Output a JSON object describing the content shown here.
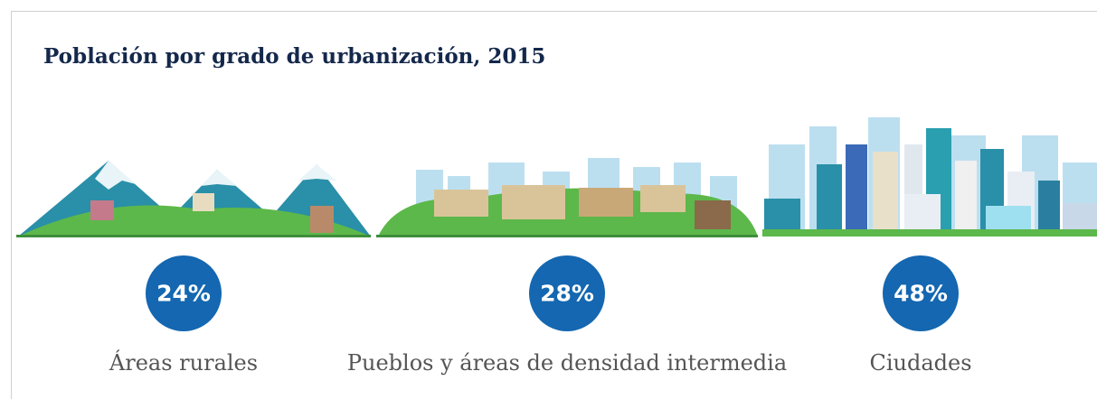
{
  "chart_data": {
    "type": "infographic",
    "title": "Población por grado de urbanización, 2015",
    "categories": [
      "Áreas rurales",
      "Pueblos y áreas de densidad intermedia",
      "Ciudades"
    ],
    "values": [
      24,
      28,
      48
    ],
    "value_labels": [
      "24%",
      "28%",
      "48%"
    ],
    "color": "#1467b0"
  }
}
